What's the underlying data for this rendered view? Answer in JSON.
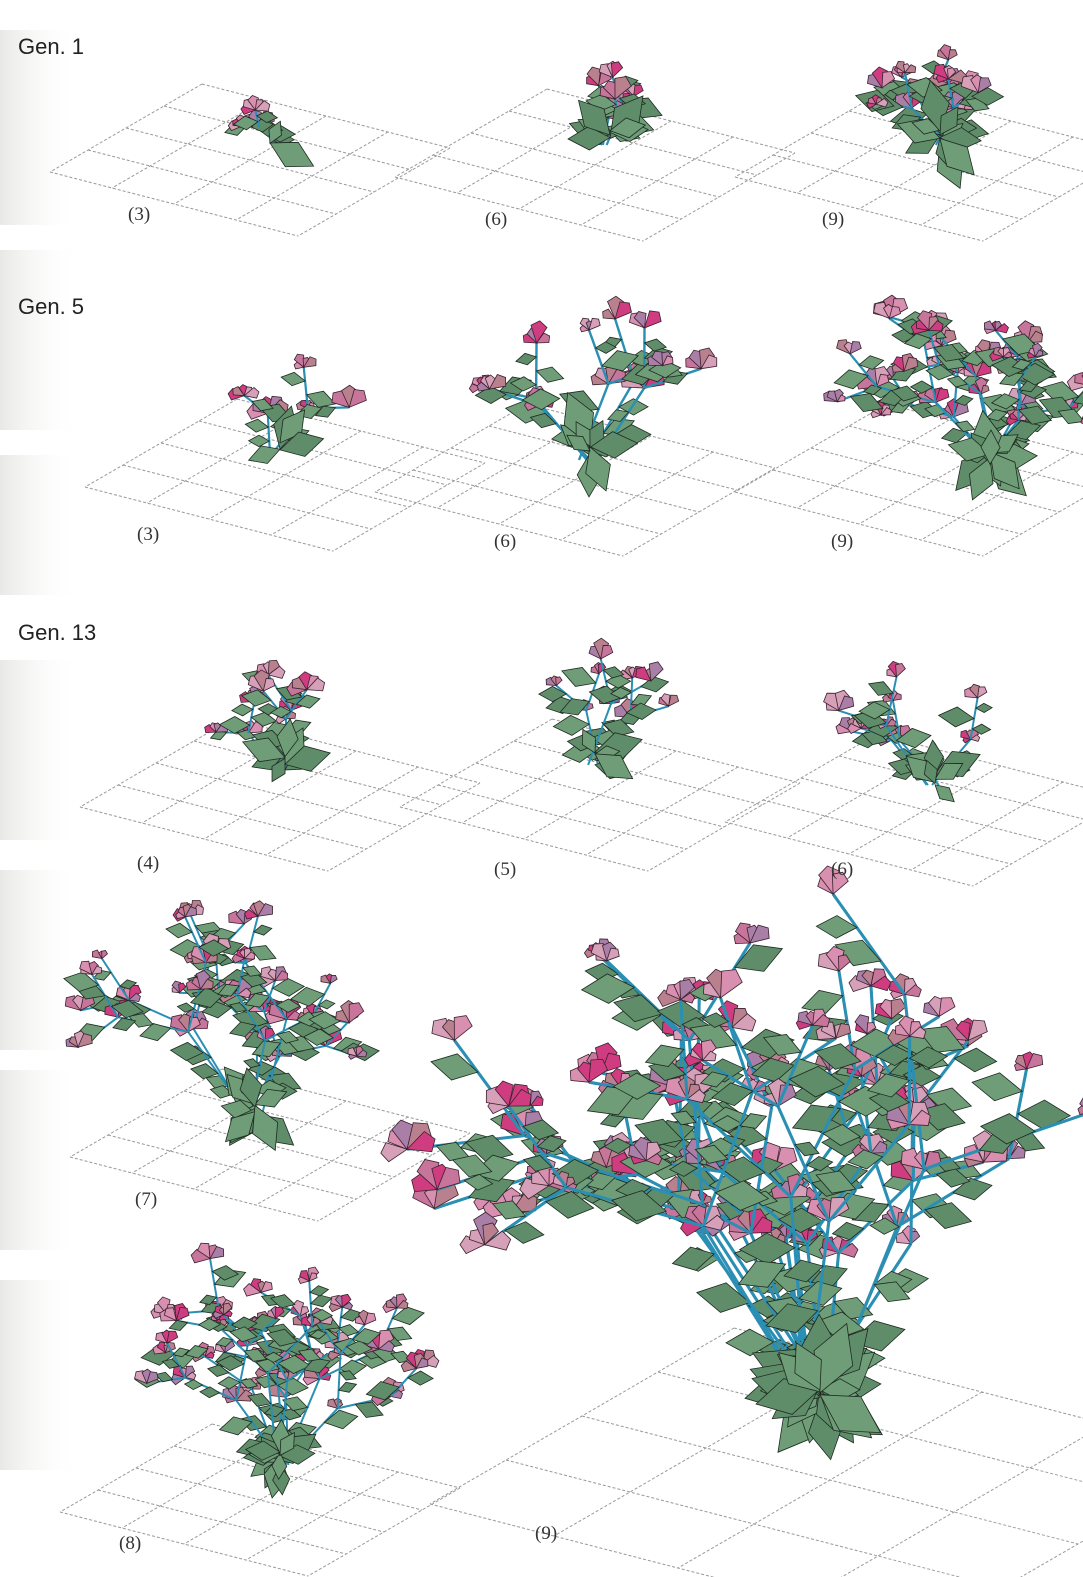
{
  "rows": [
    {
      "label": "Gen. 1",
      "panels": [
        "(3)",
        "(6)",
        "(9)"
      ]
    },
    {
      "label": "Gen. 5",
      "panels": [
        "(3)",
        "(6)",
        "(9)"
      ]
    },
    {
      "label": "Gen. 13",
      "panels": [
        "(4)",
        "(5)",
        "(6)",
        "(7)",
        "(8)",
        "(9)"
      ]
    }
  ]
}
